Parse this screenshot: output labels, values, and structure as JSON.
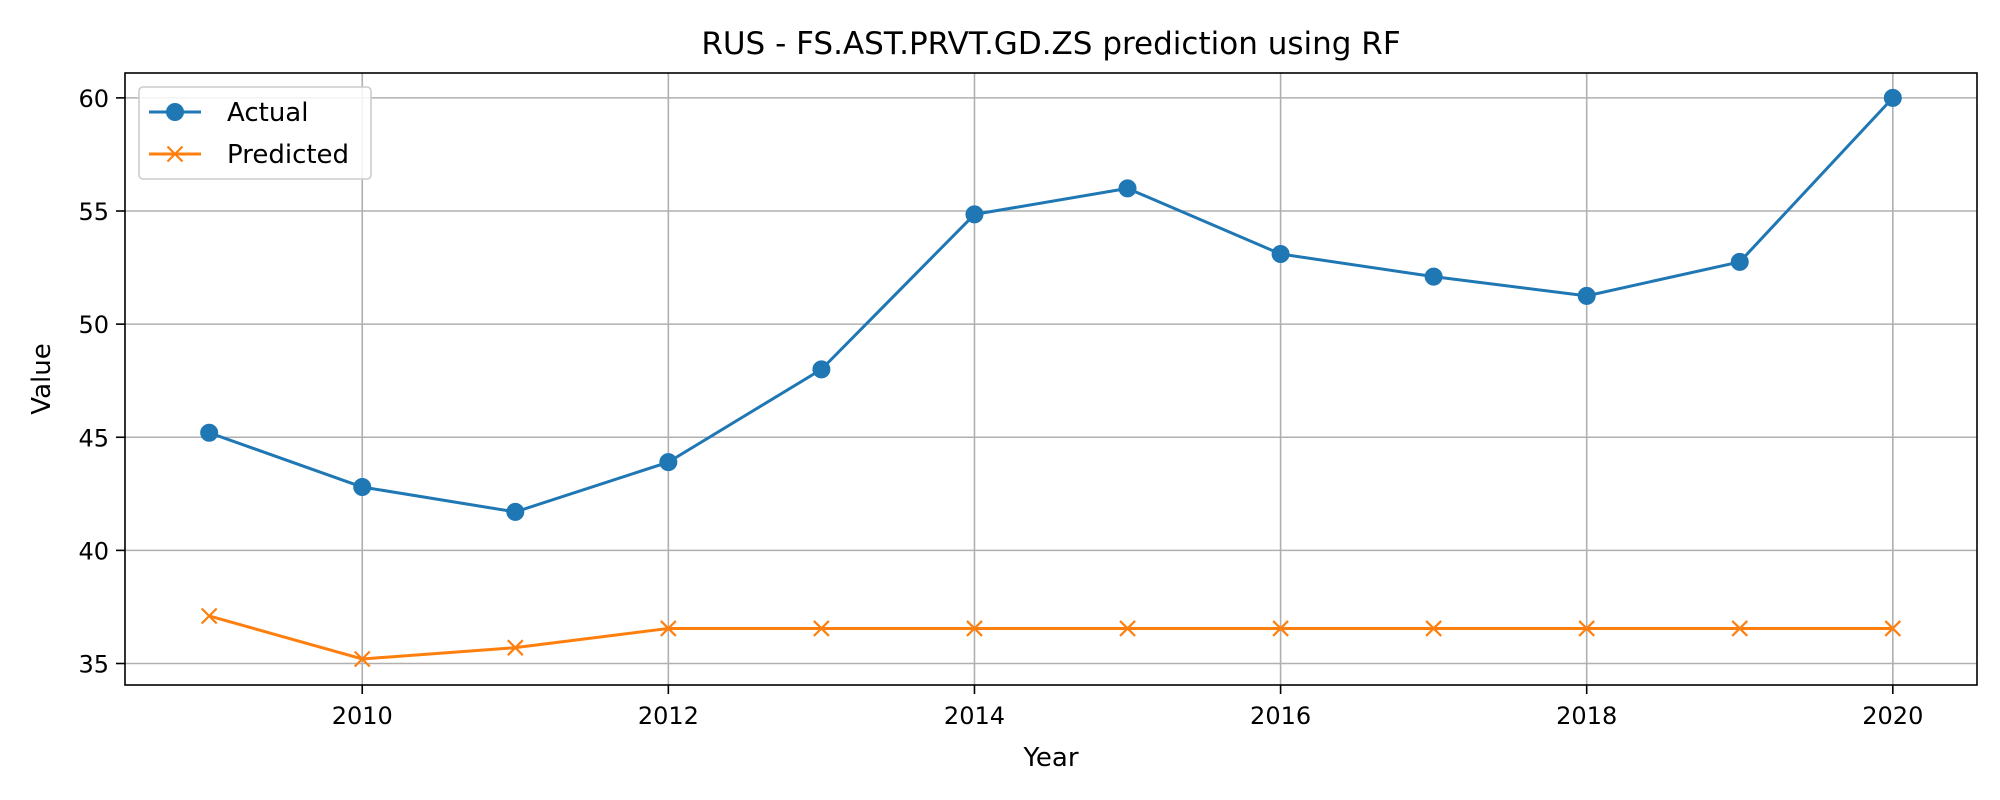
{
  "chart_data": {
    "type": "line",
    "title": "RUS - FS.AST.PRVT.GD.ZS prediction using RF",
    "xlabel": "Year",
    "ylabel": "Value",
    "x": [
      2009,
      2010,
      2011,
      2012,
      2013,
      2014,
      2015,
      2016,
      2017,
      2018,
      2019,
      2020
    ],
    "xlim": [
      2008.45,
      2020.55
    ],
    "ylim": [
      34.05,
      61.1
    ],
    "xticks": [
      2010,
      2012,
      2014,
      2016,
      2018,
      2020
    ],
    "yticks": [
      35,
      40,
      45,
      50,
      55,
      60
    ],
    "grid": true,
    "legend_position": "top-left",
    "series": [
      {
        "name": "Actual",
        "color": "#1f77b4",
        "marker": "circle",
        "values": [
          45.2,
          42.8,
          41.7,
          43.9,
          48.0,
          54.85,
          56.0,
          53.1,
          52.1,
          51.25,
          52.75,
          60.0
        ]
      },
      {
        "name": "Predicted",
        "color": "#ff7f0e",
        "marker": "x",
        "values": [
          37.1,
          35.2,
          35.7,
          36.55,
          36.55,
          36.55,
          36.55,
          36.55,
          36.55,
          36.55,
          36.55,
          36.55
        ]
      }
    ]
  }
}
